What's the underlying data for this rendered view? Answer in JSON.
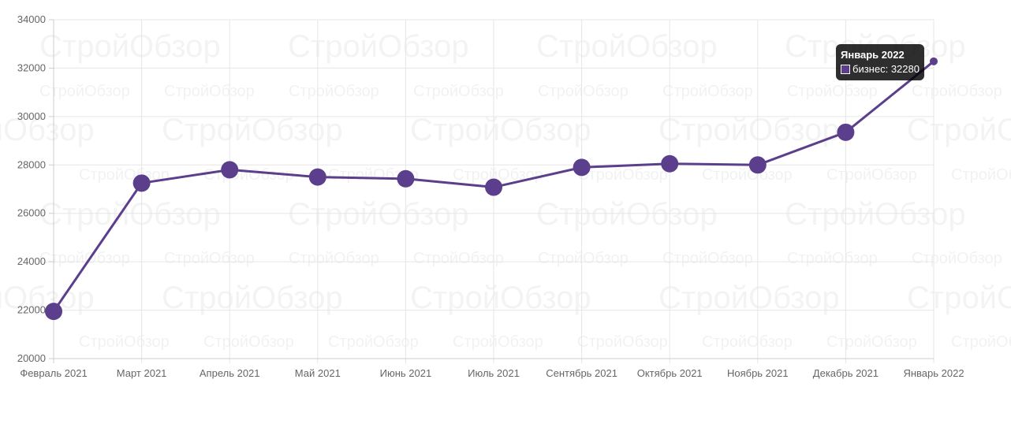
{
  "colors": {
    "line": "#5b3f8c",
    "point": "#5b3f8c",
    "grid": "#e6e6e6",
    "axis": "#cccccc",
    "tick_text": "#666666",
    "tooltip_bg": "#000000"
  },
  "watermark": {
    "text": "СтройОбзор"
  },
  "tooltip": {
    "title": "Январь 2022",
    "series": "бизнес",
    "value": "32280"
  },
  "chart_data": {
    "type": "line",
    "categories": [
      "Февраль 2021",
      "Март 2021",
      "Апрель 2021",
      "Май 2021",
      "Июнь 2021",
      "Июль 2021",
      "Сентябрь 2021",
      "Октябрь 2021",
      "Ноябрь 2021",
      "Декабрь 2021",
      "Январь 2022"
    ],
    "series": [
      {
        "name": "бизнес",
        "values": [
          21950,
          27250,
          27800,
          27500,
          27430,
          27080,
          27900,
          28050,
          28000,
          29350,
          32280
        ]
      }
    ],
    "ylim": [
      20000,
      34000
    ],
    "yticks": [
      20000,
      22000,
      24000,
      26000,
      28000,
      30000,
      32000,
      34000
    ],
    "grid": true,
    "highlighted_index": 10
  }
}
